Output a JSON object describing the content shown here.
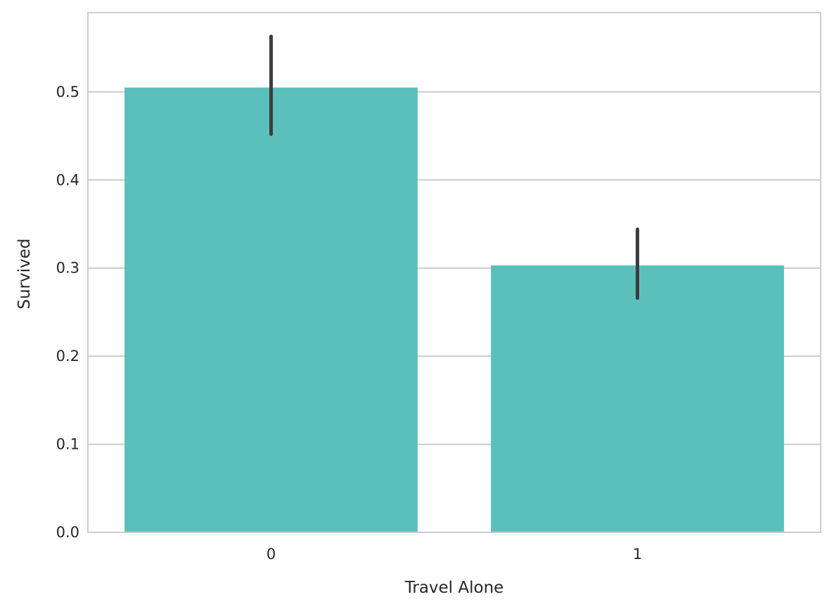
{
  "chart_data": {
    "type": "bar",
    "categories": [
      "0",
      "1"
    ],
    "values": [
      0.505,
      0.303
    ],
    "error_bars": [
      {
        "low": 0.452,
        "high": 0.563
      },
      {
        "low": 0.266,
        "high": 0.344
      }
    ],
    "title": "",
    "xlabel": "Travel Alone",
    "ylabel": "Survived",
    "ylim": [
      0,
      0.59
    ],
    "yticks": [
      "0.0",
      "0.1",
      "0.2",
      "0.3",
      "0.4",
      "0.5"
    ],
    "grid": "y",
    "legend": "none",
    "colors": {
      "bar": "#5bc0bb",
      "error_bar": "#3d3d3d",
      "grid": "#cccccc",
      "spine": "#cccccc",
      "text": "#262626"
    }
  }
}
